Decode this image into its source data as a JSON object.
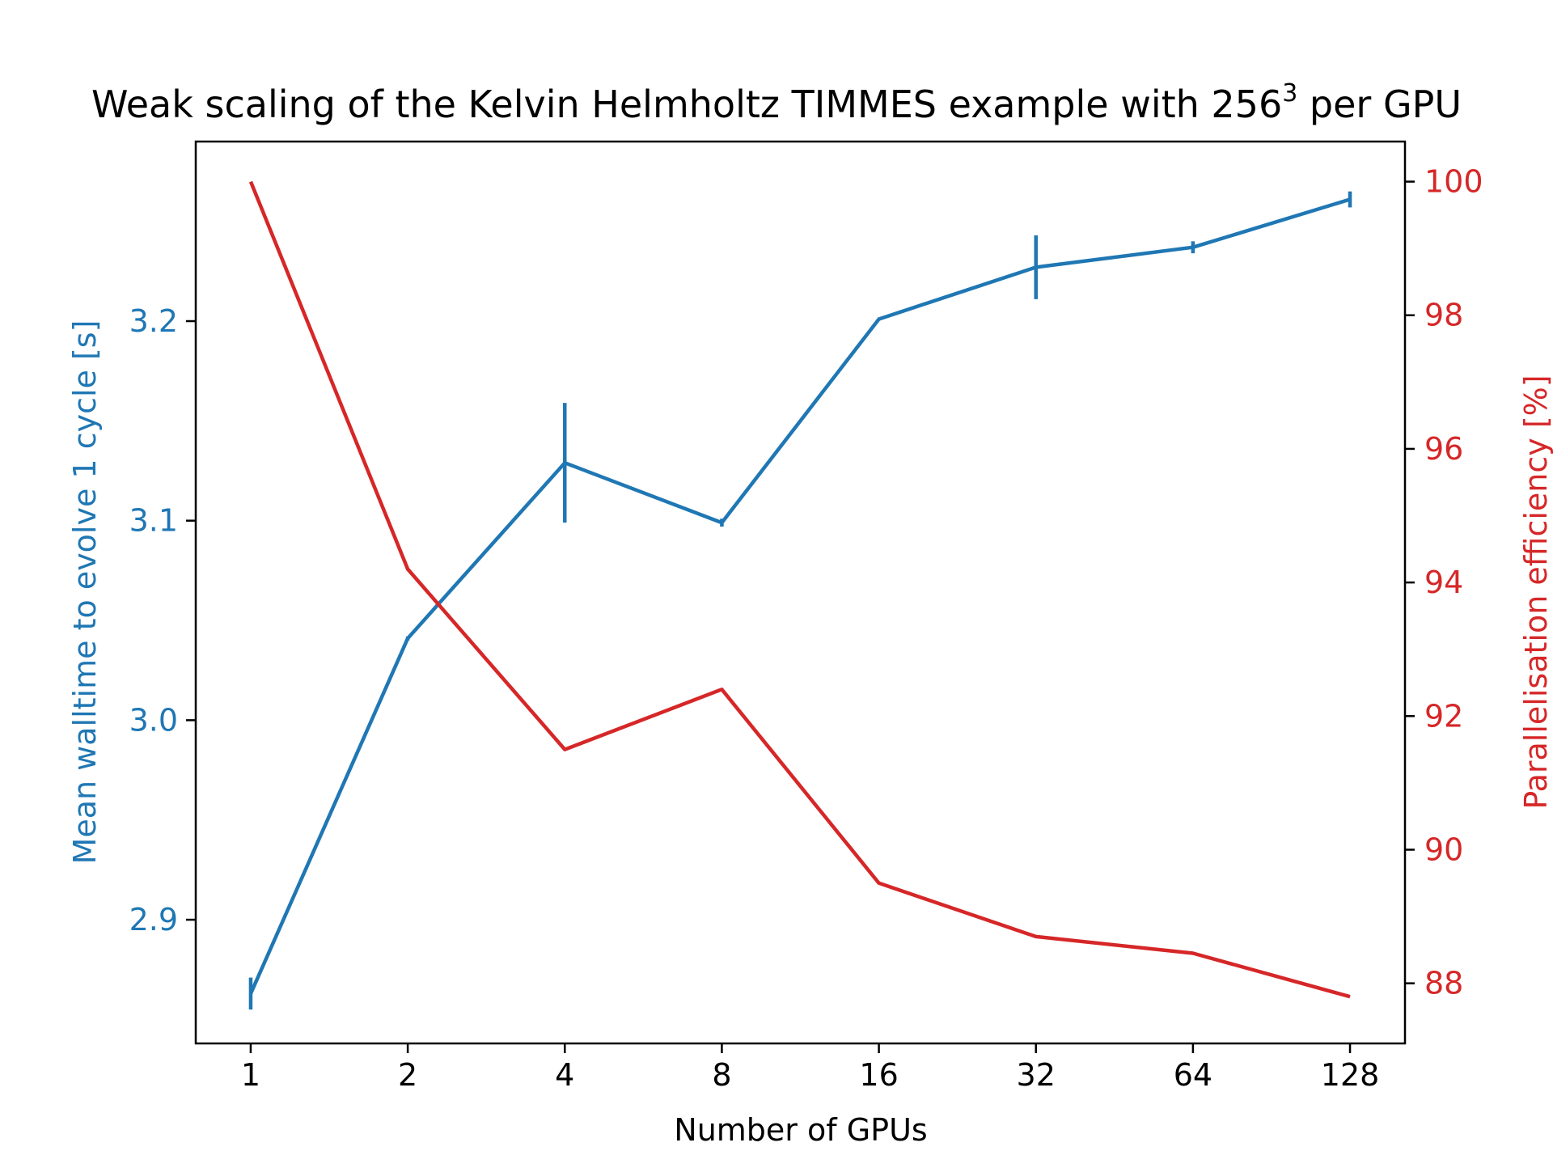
{
  "chart_data": {
    "type": "line",
    "title_main": "Weak scaling of the Kelvin Helmholtz TIMMES example with 256",
    "title_sup": "3",
    "title_end": " per GPU",
    "xlabel": "Number of GPUs",
    "ylabel_left": "Mean walltime to evolve 1 cycle [s]",
    "ylabel_right": "Parallelisation efficiency [%]",
    "x_scale": "log2",
    "x": [
      1,
      2,
      4,
      8,
      16,
      32,
      64,
      128
    ],
    "x_tick_labels": [
      "1",
      "2",
      "4",
      "8",
      "16",
      "32",
      "64",
      "128"
    ],
    "ylim_left": [
      2.838,
      3.29
    ],
    "yticks_left": [
      2.9,
      3.0,
      3.1,
      3.2
    ],
    "ytick_labels_left": [
      "2.9",
      "3.0",
      "3.1",
      "3.2"
    ],
    "ylim_right": [
      87.1,
      100.6
    ],
    "yticks_right": [
      88,
      90,
      92,
      94,
      96,
      98,
      100
    ],
    "ytick_labels_right": [
      "88",
      "90",
      "92",
      "94",
      "96",
      "98",
      "100"
    ],
    "series": [
      {
        "axis": "left",
        "color": "#1f77b4",
        "values": [
          2.863,
          3.041,
          3.129,
          3.099,
          3.201,
          3.227,
          3.237,
          3.261
        ],
        "errors": [
          0.008,
          0.001,
          0.03,
          0.002,
          0.0,
          0.016,
          0.003,
          0.004
        ]
      },
      {
        "axis": "right",
        "color": "#d62728",
        "values": [
          100.0,
          94.2,
          91.5,
          92.4,
          89.5,
          88.7,
          88.45,
          87.8
        ]
      }
    ],
    "grid": false,
    "legend": "none"
  }
}
